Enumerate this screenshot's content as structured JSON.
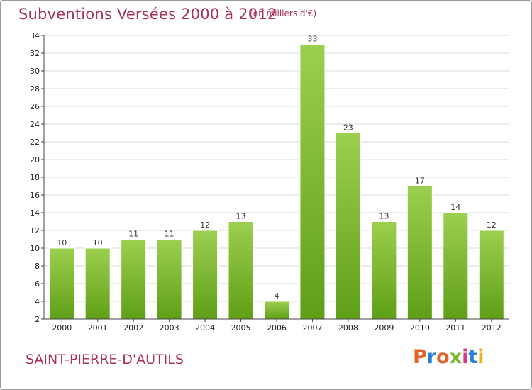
{
  "header": {
    "title": "Subventions Versées 2000 à 2012",
    "subtitle": "(en milliers d'€)"
  },
  "footer": {
    "commune": "SAINT-PIERRE-D'AUTILS",
    "logo_text": "Proxiti"
  },
  "colors": {
    "title": "#a8325a",
    "bar_light": "#9ccf4f",
    "bar_dark": "#5f9f17",
    "grid": "#d8d8d8",
    "logo": [
      "#e4632a",
      "#2f7fd4",
      "#e4632a",
      "#79b82c",
      "#d63b86",
      "#2f7fd4",
      "#e8b51f"
    ]
  },
  "chart_data": {
    "type": "bar",
    "title": "Subventions Versées 2000 à 2012",
    "subtitle": "(en milliers d'€)",
    "categories": [
      "2000",
      "2001",
      "2002",
      "2003",
      "2004",
      "2005",
      "2006",
      "2007",
      "2008",
      "2009",
      "2010",
      "2011",
      "2012"
    ],
    "values": [
      10,
      10,
      11,
      11,
      12,
      13,
      4,
      33,
      23,
      13,
      17,
      14,
      12
    ],
    "ylim": [
      2,
      34
    ],
    "yticks": [
      2,
      4,
      6,
      8,
      10,
      12,
      14,
      16,
      18,
      20,
      22,
      24,
      26,
      28,
      30,
      32,
      34
    ],
    "grid": true,
    "xlabel": "",
    "ylabel": ""
  }
}
